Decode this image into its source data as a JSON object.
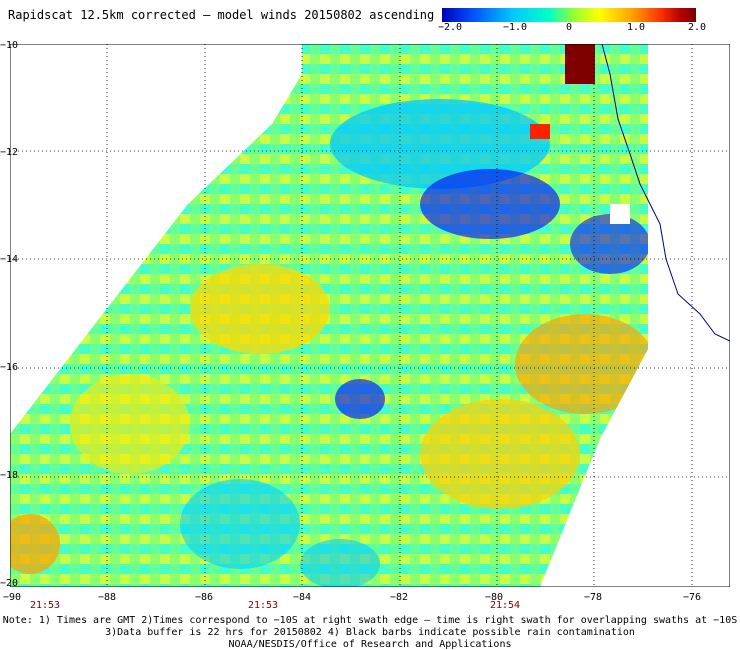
{
  "title": "Rapidscat 12.5km corrected – model winds 20150802 ascending",
  "colorbar": {
    "ticks": [
      "−2.0",
      "−1.0",
      "0",
      "1.0",
      "2.0"
    ],
    "colors": [
      "#0000b4",
      "#0050ff",
      "#00c8ff",
      "#00ffc8",
      "#96ff32",
      "#ffff00",
      "#ffa000",
      "#ff3200",
      "#b40000",
      "#780000"
    ]
  },
  "map": {
    "lat_labels": [
      "−10",
      "−12",
      "−14",
      "−16",
      "−18",
      "−20"
    ],
    "lon_labels": [
      "−90",
      "−88",
      "−86",
      "−84",
      "−82",
      "−80",
      "−78",
      "−76"
    ],
    "time_labels": [
      "21:53",
      "21:53",
      "21:54"
    ],
    "grid": true,
    "palette": {
      "blue": "#0000ff",
      "cyan": "#00ffff",
      "green": "#64ff64",
      "yellow": "#ffff00",
      "orange": "#ffa000",
      "red": "#ff2000",
      "darkred": "#800000",
      "coast": "#00008b"
    }
  },
  "notes": {
    "line1": "Note: 1) Times are GMT 2)Times correspond to −10S at right swath edge – time is right swath for overlapping swaths at −10S",
    "line2": "3)Data buffer is 22 hrs for 20150802 4) Black barbs indicate possible rain contamination",
    "line3": "NOAA/NESDIS/Office of Research and Applications"
  }
}
